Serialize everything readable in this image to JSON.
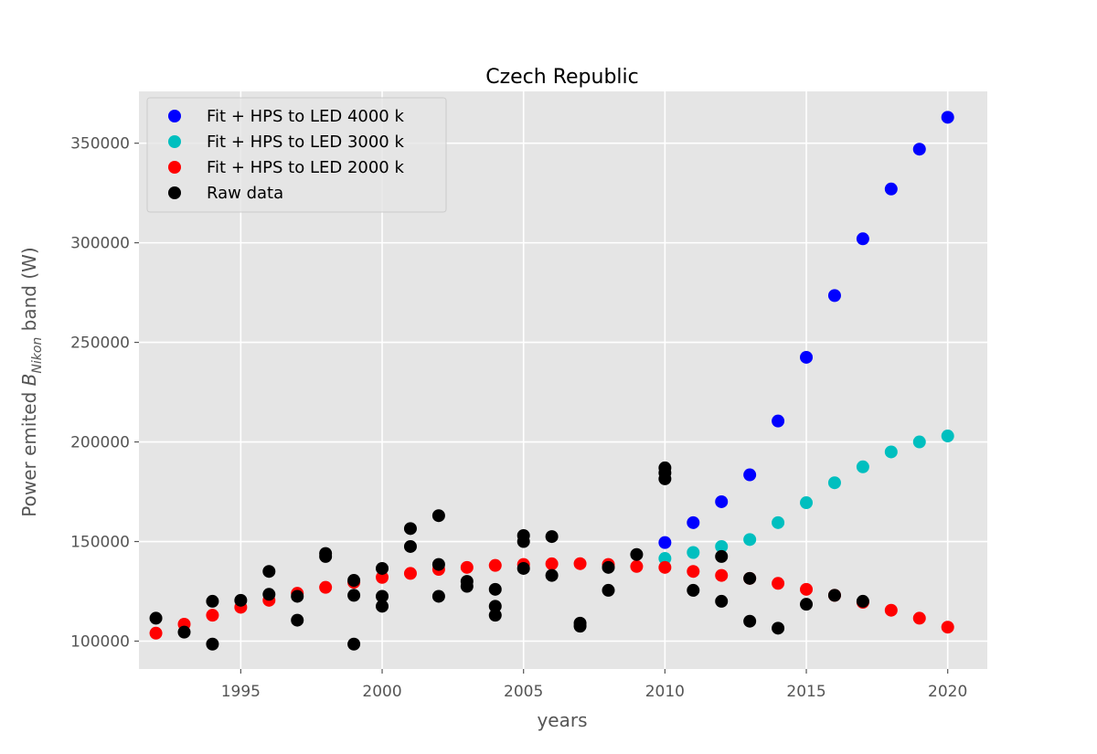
{
  "chart_data": {
    "type": "scatter",
    "title": "Czech Republic",
    "xlabel": "years",
    "ylabel_prefix": "Power emited ",
    "ylabel_symbol": "B",
    "ylabel_subscript": "Nikon",
    "ylabel_suffix": " band (W)",
    "xlim": [
      1991.4,
      2021.4
    ],
    "ylim": [
      86000,
      376000
    ],
    "xticks": [
      1995,
      2000,
      2005,
      2010,
      2015,
      2020
    ],
    "yticks": [
      100000,
      150000,
      200000,
      250000,
      300000,
      350000
    ],
    "grid": true,
    "legend_position": "top-left",
    "colors": {
      "panel": "#e5e5e5",
      "grid": "#ffffff",
      "tick_text": "#555555"
    },
    "series": [
      {
        "name": "Fit + HPS to LED 4000 k",
        "color": "#0000ff",
        "points": [
          [
            2010,
            149500
          ],
          [
            2011,
            159500
          ],
          [
            2012,
            170000
          ],
          [
            2013,
            183500
          ],
          [
            2014,
            210500
          ],
          [
            2015,
            242500
          ],
          [
            2016,
            273500
          ],
          [
            2017,
            302000
          ],
          [
            2018,
            327000
          ],
          [
            2019,
            347000
          ],
          [
            2020,
            363000
          ]
        ]
      },
      {
        "name": "Fit + HPS to LED 3000 k",
        "color": "#00bfbf",
        "points": [
          [
            2010,
            141500
          ],
          [
            2011,
            144500
          ],
          [
            2012,
            147500
          ],
          [
            2013,
            151000
          ],
          [
            2014,
            159500
          ],
          [
            2015,
            169500
          ],
          [
            2016,
            179500
          ],
          [
            2017,
            187500
          ],
          [
            2018,
            195000
          ],
          [
            2019,
            200000
          ],
          [
            2020,
            203000
          ]
        ]
      },
      {
        "name": "Fit + HPS to LED 2000 k",
        "color": "#ff0000",
        "points": [
          [
            1992,
            104000
          ],
          [
            1993,
            108500
          ],
          [
            1994,
            113000
          ],
          [
            1995,
            117000
          ],
          [
            1996,
            120500
          ],
          [
            1997,
            124000
          ],
          [
            1998,
            127000
          ],
          [
            1999,
            129500
          ],
          [
            2000,
            132000
          ],
          [
            2001,
            134000
          ],
          [
            2002,
            136000
          ],
          [
            2003,
            137000
          ],
          [
            2004,
            138000
          ],
          [
            2005,
            138500
          ],
          [
            2006,
            138800
          ],
          [
            2007,
            138900
          ],
          [
            2008,
            138500
          ],
          [
            2009,
            137500
          ],
          [
            2010,
            137000
          ],
          [
            2011,
            135000
          ],
          [
            2012,
            133000
          ],
          [
            2013,
            131500
          ],
          [
            2014,
            129000
          ],
          [
            2015,
            126000
          ],
          [
            2016,
            123000
          ],
          [
            2017,
            119500
          ],
          [
            2018,
            115500
          ],
          [
            2019,
            111500
          ],
          [
            2020,
            107000
          ]
        ]
      },
      {
        "name": "Raw data",
        "color": "#000000",
        "points": [
          [
            1992,
            111500
          ],
          [
            1993,
            104500
          ],
          [
            1994,
            120000
          ],
          [
            1994,
            98500
          ],
          [
            1995,
            120500
          ],
          [
            1996,
            135000
          ],
          [
            1996,
            123500
          ],
          [
            1997,
            122500
          ],
          [
            1997,
            110500
          ],
          [
            1998,
            144000
          ],
          [
            1998,
            142500
          ],
          [
            1999,
            130500
          ],
          [
            1999,
            123000
          ],
          [
            1999,
            98500
          ],
          [
            2000,
            136500
          ],
          [
            2000,
            122500
          ],
          [
            2000,
            117500
          ],
          [
            2001,
            156500
          ],
          [
            2001,
            147500
          ],
          [
            2002,
            163000
          ],
          [
            2002,
            138500
          ],
          [
            2002,
            122500
          ],
          [
            2003,
            130000
          ],
          [
            2003,
            127500
          ],
          [
            2004,
            126000
          ],
          [
            2004,
            117500
          ],
          [
            2004,
            113000
          ],
          [
            2005,
            153000
          ],
          [
            2005,
            150000
          ],
          [
            2005,
            136500
          ],
          [
            2006,
            152500
          ],
          [
            2006,
            133000
          ],
          [
            2007,
            109000
          ],
          [
            2007,
            107500
          ],
          [
            2008,
            137000
          ],
          [
            2008,
            125500
          ],
          [
            2009,
            143500
          ],
          [
            2010,
            187000
          ],
          [
            2010,
            184500
          ],
          [
            2010,
            181500
          ],
          [
            2011,
            125500
          ],
          [
            2012,
            142500
          ],
          [
            2012,
            120000
          ],
          [
            2013,
            131500
          ],
          [
            2013,
            110000
          ],
          [
            2014,
            106500
          ],
          [
            2015,
            118500
          ],
          [
            2016,
            123000
          ],
          [
            2017,
            120000
          ]
        ]
      }
    ]
  }
}
